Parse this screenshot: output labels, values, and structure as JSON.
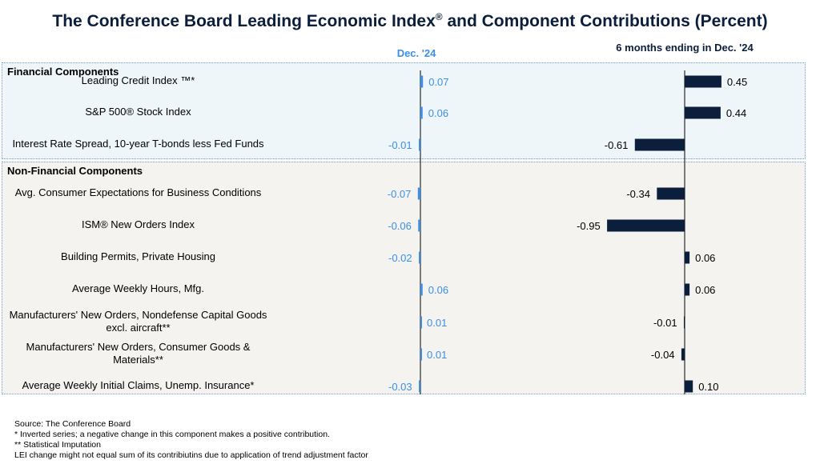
{
  "title_main": "The Conference Board Leading Economic Index",
  "title_sup": "®",
  "title_tail": " and Component Contributions (Percent)",
  "col1_header": "Dec. '24",
  "col2_header": "6 months ending in Dec. '24",
  "groups": {
    "financial": "Financial Components",
    "nonfinancial": "Non-Financial Components"
  },
  "footer": {
    "source": "Source: The Conference Board",
    "note1": "*  Inverted series; a negative change in this component makes a positive contribution.",
    "note2": "**  Statistical Imputation",
    "note3": "LEI change might not equal sum of its contribiutins due to application of trend adjustment factor"
  },
  "colors": {
    "monthly": "#3b8fe6",
    "six_month": "#0b1e3c",
    "fin_bg": "#eef6fa",
    "nonfin_bg": "#f5f3ef"
  },
  "chart_data": [
    {
      "type": "bar",
      "orientation": "horizontal",
      "title": "Dec. '24",
      "categories": [
        "Leading Credit Index ™*",
        "S&P 500® Stock Index",
        "Interest Rate Spread, 10-year T-bonds less Fed Funds",
        "Avg. Consumer Expectations for Business Conditions",
        "ISM® New Orders Index",
        "Building Permits, Private Housing",
        "Average Weekly Hours, Mfg.",
        "Manufacturers' New Orders, Nondefense Capital Goods excl. aircraft**",
        "Manufacturers' New Orders, Consumer Goods & Materials**",
        "Average Weekly Initial Claims, Unemp. Insurance*"
      ],
      "values": [
        0.07,
        0.06,
        -0.01,
        -0.07,
        -0.06,
        -0.02,
        0.06,
        0.01,
        0.01,
        -0.03
      ],
      "labels": [
        "0.07",
        "0.06",
        "-0.01",
        "-0.07",
        "-0.06",
        "-0.02",
        "0.06",
        "0.01",
        "0.01",
        "-0.03"
      ]
    },
    {
      "type": "bar",
      "orientation": "horizontal",
      "title": "6 months ending in Dec. '24",
      "categories": [
        "Leading Credit Index ™*",
        "S&P 500® Stock Index",
        "Interest Rate Spread, 10-year T-bonds less Fed Funds",
        "Avg. Consumer Expectations for Business Conditions",
        "ISM® New Orders Index",
        "Building Permits, Private Housing",
        "Average Weekly Hours, Mfg.",
        "Manufacturers' New Orders, Nondefense Capital Goods excl. aircraft**",
        "Manufacturers' New Orders, Consumer Goods & Materials**",
        "Average Weekly Initial Claims, Unemp. Insurance*"
      ],
      "values": [
        0.45,
        0.44,
        -0.61,
        -0.34,
        -0.95,
        0.06,
        0.06,
        -0.01,
        -0.04,
        0.1
      ],
      "labels": [
        "0.45",
        "0.44",
        "-0.61",
        "-0.34",
        "-0.95",
        "0.06",
        "0.06",
        "-0.01",
        "-0.04",
        "0.10"
      ]
    }
  ]
}
